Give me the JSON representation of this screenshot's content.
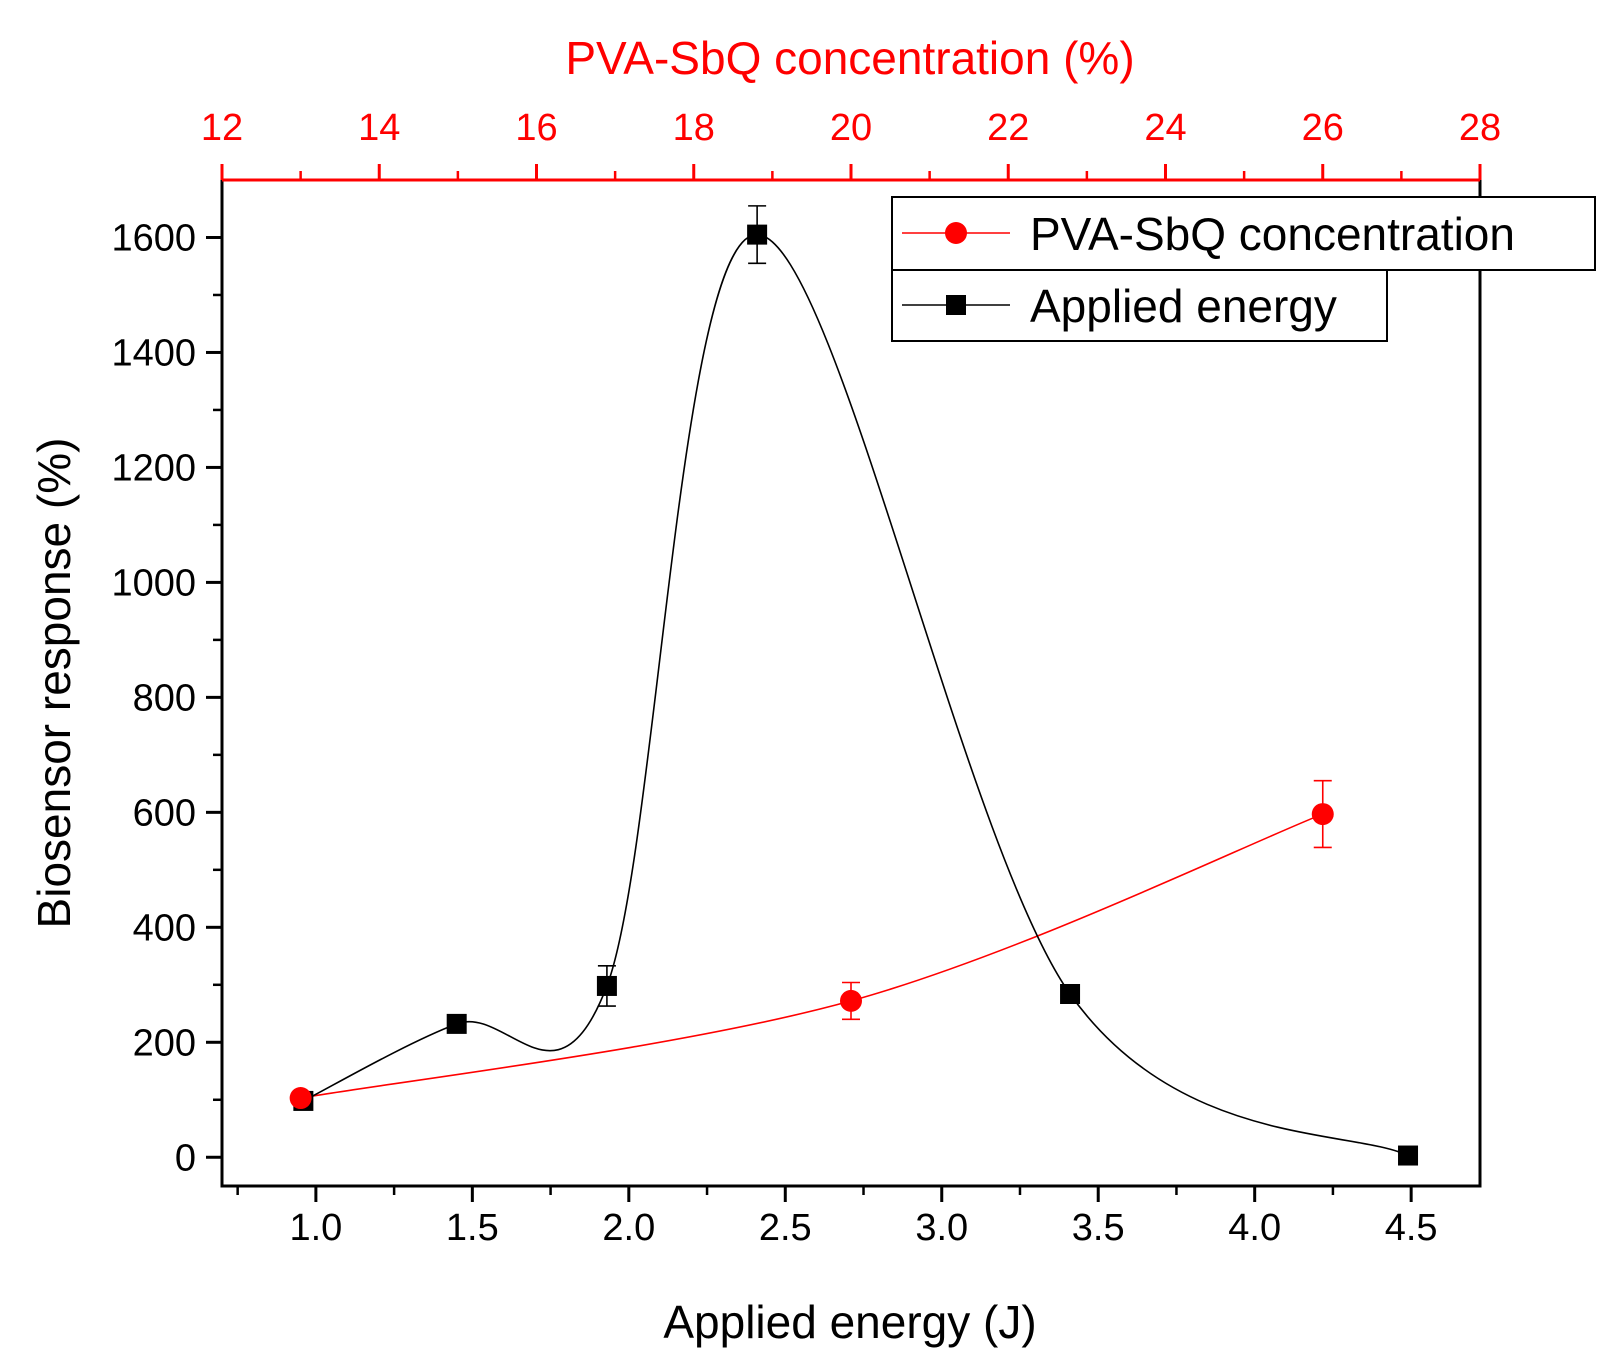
{
  "chart_data": {
    "type": "line",
    "x_axis_bottom": {
      "label": "Applied energy (J)",
      "range": [
        0.7,
        4.72
      ],
      "ticks": [
        "1.0",
        "1.5",
        "2.0",
        "2.5",
        "3.0",
        "3.5",
        "4.0",
        "4.5"
      ],
      "tick_values": [
        1.0,
        1.5,
        2.0,
        2.5,
        3.0,
        3.5,
        4.0,
        4.5
      ],
      "color": "#000000"
    },
    "x_axis_top": {
      "label": "PVA-SbQ concentration (%)",
      "range": [
        12,
        28
      ],
      "ticks": [
        "12",
        "14",
        "16",
        "18",
        "20",
        "22",
        "24",
        "26",
        "28"
      ],
      "tick_values": [
        12,
        14,
        16,
        18,
        20,
        22,
        24,
        26,
        28
      ],
      "color": "#ff0000"
    },
    "y_axis": {
      "label": "Biosensor response (%)",
      "range": [
        -50,
        1700
      ],
      "ticks": [
        "0",
        "200",
        "400",
        "600",
        "800",
        "1000",
        "1200",
        "1400",
        "1600"
      ],
      "tick_values": [
        0,
        200,
        400,
        600,
        800,
        1000,
        1200,
        1400,
        1600
      ]
    },
    "series": [
      {
        "name": "PVA-SbQ concentration",
        "axis": "top",
        "color": "#ff0000",
        "marker": "circle",
        "x": [
          13,
          20,
          26
        ],
        "y": [
          103,
          272,
          597
        ],
        "err": [
          0,
          32,
          58
        ]
      },
      {
        "name": "Applied energy",
        "axis": "bottom",
        "color": "#000000",
        "marker": "square",
        "x": [
          0.96,
          1.45,
          1.93,
          2.41,
          3.41,
          4.49
        ],
        "y": [
          98,
          232,
          298,
          1605,
          284,
          3
        ],
        "err": [
          0,
          0,
          35,
          50,
          0,
          0
        ]
      }
    ],
    "legend": {
      "position": "top-right",
      "entries": [
        "PVA-SbQ concentration",
        "Applied energy"
      ]
    },
    "grid": false
  }
}
